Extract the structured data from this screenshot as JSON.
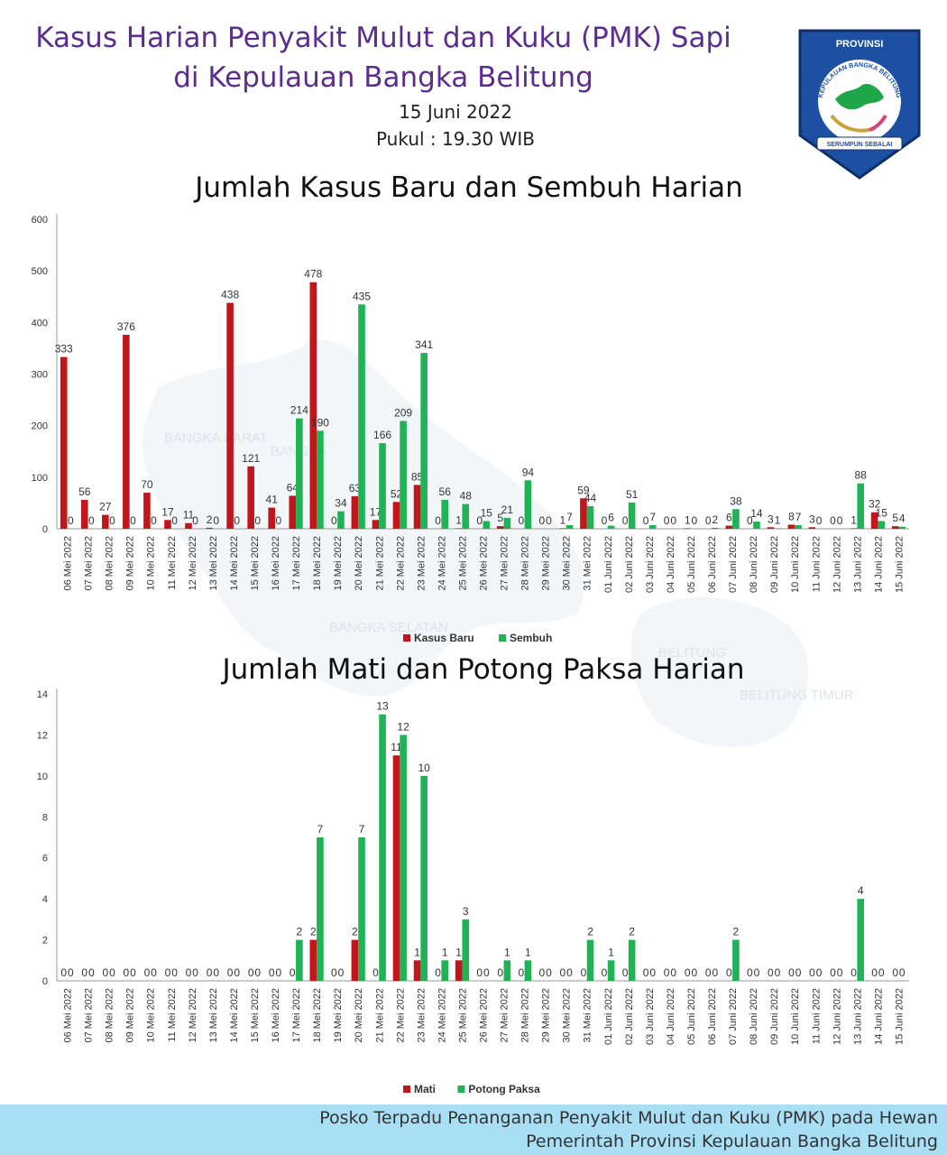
{
  "header": {
    "title_line1": "Kasus Harian Penyakit Mulut dan Kuku (PMK) Sapi",
    "title_line2": "di Kepulauan Bangka Belitung",
    "date": "15 Juni 2022",
    "time": "Pukul : 19.30 WIB"
  },
  "logo": {
    "top_text": "PROVINSI",
    "ring_text": "KEPULAUAN BANGKA BELITUNG",
    "motto": "SERUMPUN SEBALAI"
  },
  "map_labels": [
    "BANGKA BARAT",
    "BANGKA",
    "BANGKA SELATAN",
    "BELITUNG",
    "BELITUNG TIMUR"
  ],
  "colors": {
    "red": "#c0161c",
    "green": "#1fb356",
    "title": "#5b2d8e",
    "footer": "#a9dff5"
  },
  "chart_data": [
    {
      "type": "bar",
      "title": "Jumlah Kasus Baru dan Sembuh Harian",
      "categories": [
        "06 Mei 2022",
        "07 Mei 2022",
        "08 Mei 2022",
        "09 Mei 2022",
        "10 Mei 2022",
        "11 Mei 2022",
        "12 Mei 2022",
        "13 Mei 2022",
        "14 Mei 2022",
        "15 Mei 2022",
        "16 Mei 2022",
        "17 Mei 2022",
        "18 Mei 2022",
        "19 Mei 2022",
        "20 Mei 2022",
        "21 Mei 2022",
        "22 Mei 2022",
        "23 Mei 2022",
        "24 Mei 2022",
        "25 Mei 2022",
        "26 Mei 2022",
        "27 Mei 2022",
        "28 Mei 2022",
        "29 Mei 2022",
        "30 Mei 2022",
        "31 Mei 2022",
        "01 Juni 2022",
        "02 Juni 2022",
        "03 Juni 2022",
        "04 Juni 2022",
        "05 Juni 2022",
        "06 Juni 2022",
        "07 Juni 2022",
        "08 Juni 2022",
        "09 Juni 2022",
        "10 Juni 2022",
        "11 Juni 2022",
        "12 Juni 2022",
        "13 Juni 2022",
        "14 Juni 2022",
        "15 Juni 2022"
      ],
      "series": [
        {
          "name": "Kasus Baru",
          "color": "#c0161c",
          "values": [
            333,
            56,
            27,
            376,
            70,
            17,
            11,
            2,
            438,
            121,
            41,
            64,
            478,
            0,
            63,
            17,
            52,
            85,
            0,
            1,
            0,
            5,
            0,
            0,
            1,
            59,
            0,
            0,
            0,
            0,
            1,
            0,
            6,
            0,
            3,
            8,
            3,
            0,
            1,
            32,
            5
          ]
        },
        {
          "name": "Sembuh",
          "color": "#1fb356",
          "values": [
            0,
            0,
            0,
            0,
            0,
            0,
            0,
            0,
            0,
            0,
            0,
            214,
            190,
            34,
            435,
            166,
            209,
            341,
            56,
            48,
            15,
            21,
            94,
            0,
            7,
            44,
            6,
            51,
            7,
            0,
            0,
            2,
            38,
            14,
            1,
            7,
            0,
            0,
            88,
            15,
            4
          ]
        }
      ],
      "ylim": [
        0,
        600
      ],
      "yticks": [
        0,
        100,
        200,
        300,
        400,
        500,
        600
      ],
      "legend": "bottom"
    },
    {
      "type": "bar",
      "title": "Jumlah Mati dan Potong Paksa Harian",
      "categories": [
        "06 Mei 2022",
        "07 Mei 2022",
        "08 Mei 2022",
        "09 Mei 2022",
        "10 Mei 2022",
        "11 Mei 2022",
        "12 Mei 2022",
        "13 Mei 2022",
        "14 Mei 2022",
        "15 Mei 2022",
        "16 Mei 2022",
        "17 Mei 2022",
        "18 Mei 2022",
        "19 Mei 2022",
        "20 Mei 2022",
        "21 Mei 2022",
        "22 Mei 2022",
        "23 Mei 2022",
        "24 Mei 2022",
        "25 Mei 2022",
        "26 Mei 2022",
        "27 Mei 2022",
        "28 Mei 2022",
        "29 Mei 2022",
        "30 Mei 2022",
        "31 Mei 2022",
        "01 Juni 2022",
        "02 Juni 2022",
        "03 Juni 2022",
        "04 Juni 2022",
        "05 Juni 2022",
        "06 Juni 2022",
        "07 Juni 2022",
        "08 Juni 2022",
        "09 Juni 2022",
        "10 Juni 2022",
        "11 Juni 2022",
        "12 Juni 2022",
        "13 Juni 2022",
        "14 Juni 2022",
        "15 Juni 2022"
      ],
      "series": [
        {
          "name": "Mati",
          "color": "#c0161c",
          "values": [
            0,
            0,
            0,
            0,
            0,
            0,
            0,
            0,
            0,
            0,
            0,
            0,
            2,
            0,
            2,
            0,
            11,
            1,
            0,
            1,
            0,
            0,
            0,
            0,
            0,
            0,
            0,
            0,
            0,
            0,
            0,
            0,
            0,
            0,
            0,
            0,
            0,
            0,
            0,
            0,
            0
          ]
        },
        {
          "name": "Potong Paksa",
          "color": "#1fb356",
          "values": [
            0,
            0,
            0,
            0,
            0,
            0,
            0,
            0,
            0,
            0,
            0,
            2,
            7,
            0,
            7,
            13,
            12,
            10,
            1,
            3,
            0,
            1,
            1,
            0,
            0,
            2,
            1,
            2,
            0,
            0,
            0,
            0,
            2,
            0,
            0,
            0,
            0,
            0,
            4,
            0,
            0
          ]
        }
      ],
      "ylim": [
        0,
        14
      ],
      "yticks": [
        0,
        2,
        4,
        6,
        8,
        10,
        12,
        14
      ],
      "legend": "bottom"
    }
  ],
  "footer": {
    "line1": "Posko Terpadu Penanganan Penyakit Mulut dan Kuku (PMK) pada Hewan",
    "line2": "Pemerintah Provinsi Kepulauan Bangka Belitung"
  }
}
